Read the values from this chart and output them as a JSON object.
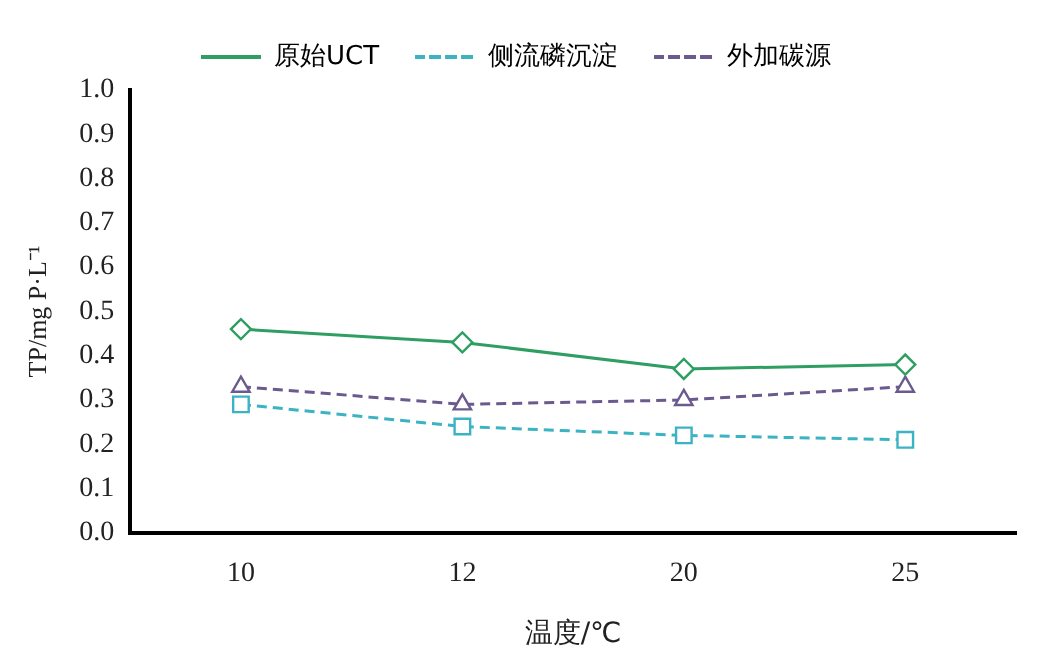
{
  "chart_data": {
    "type": "line",
    "xlabel": "温度/℃",
    "ylabel": "TP/mg P·L⁻¹",
    "categories": [
      "10",
      "12",
      "20",
      "25"
    ],
    "series": [
      {
        "name": "原始UCT",
        "color": "#2e9e62",
        "values": [
          0.46,
          0.43,
          0.37,
          0.38
        ],
        "marker": "diamond",
        "line_style": "solid"
      },
      {
        "name": "侧流磷沉淀",
        "color": "#3bb3c3",
        "values": [
          0.29,
          0.24,
          0.22,
          0.21
        ],
        "marker": "square",
        "line_style": "dashed"
      },
      {
        "name": "外加碳源",
        "color": "#6b5a8e",
        "values": [
          0.33,
          0.29,
          0.3,
          0.33
        ],
        "marker": "triangle",
        "line_style": "dashed"
      }
    ],
    "ylim": [
      0,
      1
    ],
    "yticks": [
      {
        "value": 0,
        "label": "0.0"
      },
      0.1,
      0.2,
      0.3,
      0.4,
      0.5,
      0.6,
      0.7,
      0.8,
      0.9,
      {
        "value": 1,
        "label": "1.0"
      }
    ],
    "grid": false,
    "legend": "top"
  }
}
